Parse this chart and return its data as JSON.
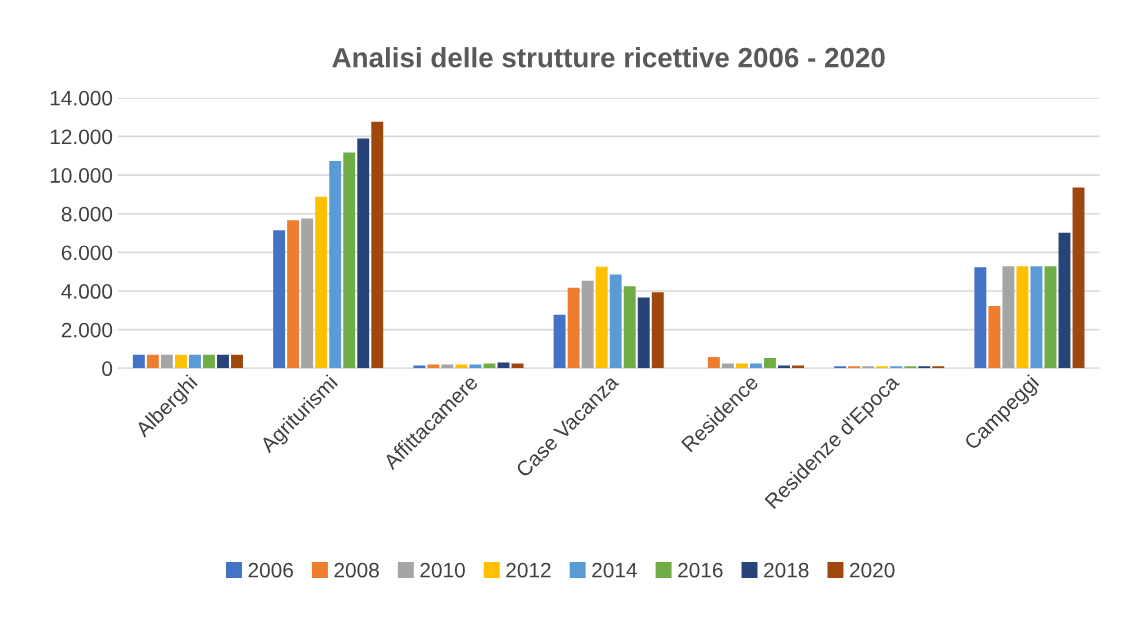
{
  "chart_data": {
    "type": "bar",
    "title": "Analisi delle strutture ricettive 2006 - 2020",
    "categories": [
      "Alberghi",
      "Agriturismi",
      "Affittacamere",
      "Case Vacanza",
      "Residence",
      "Residenze d'Epoca",
      "Campeggi"
    ],
    "series": [
      {
        "name": "2006",
        "color": "#4472c4",
        "values": [
          700,
          7150,
          150,
          2770,
          0,
          100,
          5230
        ]
      },
      {
        "name": "2008",
        "color": "#ed7d31",
        "values": [
          700,
          7660,
          200,
          4170,
          585,
          100,
          3230
        ]
      },
      {
        "name": "2010",
        "color": "#a5a5a5",
        "values": [
          700,
          7750,
          200,
          4530,
          245,
          100,
          5280
        ]
      },
      {
        "name": "2012",
        "color": "#ffc000",
        "values": [
          700,
          8880,
          200,
          5260,
          245,
          100,
          5280
        ]
      },
      {
        "name": "2014",
        "color": "#5b9bd5",
        "values": [
          700,
          10730,
          200,
          4850,
          245,
          100,
          5280
        ]
      },
      {
        "name": "2016",
        "color": "#70ad47",
        "values": [
          700,
          11170,
          250,
          4250,
          530,
          100,
          5280
        ]
      },
      {
        "name": "2018",
        "color": "#264478",
        "values": [
          700,
          11900,
          300,
          3660,
          150,
          100,
          7020
        ]
      },
      {
        "name": "2020",
        "color": "#9e480e",
        "values": [
          700,
          12760,
          250,
          3940,
          150,
          100,
          9360
        ]
      }
    ],
    "ylim": [
      0,
      14000
    ],
    "yticks": [
      {
        "value": 0,
        "label": "0"
      },
      {
        "value": 2000,
        "label": "2.000"
      },
      {
        "value": 4000,
        "label": "4.000"
      },
      {
        "value": 6000,
        "label": "6.000"
      },
      {
        "value": 8000,
        "label": "8.000"
      },
      {
        "value": 10000,
        "label": "10.000"
      },
      {
        "value": 12000,
        "label": "12.000"
      },
      {
        "value": 14000,
        "label": "14.000"
      }
    ],
    "grid": "y",
    "legend": "bottom"
  }
}
